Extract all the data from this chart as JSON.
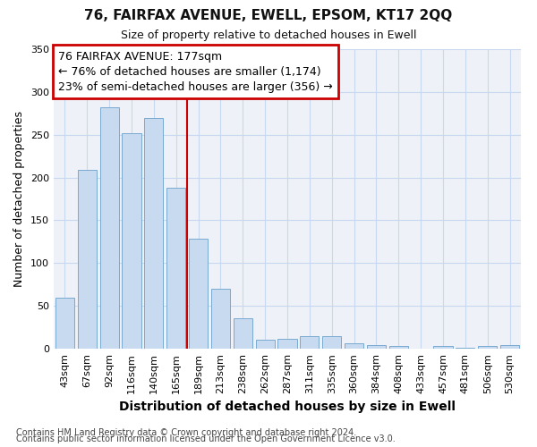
{
  "title": "76, FAIRFAX AVENUE, EWELL, EPSOM, KT17 2QQ",
  "subtitle": "Size of property relative to detached houses in Ewell",
  "xlabel": "Distribution of detached houses by size in Ewell",
  "ylabel": "Number of detached properties",
  "categories": [
    "43sqm",
    "67sqm",
    "92sqm",
    "116sqm",
    "140sqm",
    "165sqm",
    "189sqm",
    "213sqm",
    "238sqm",
    "262sqm",
    "287sqm",
    "311sqm",
    "335sqm",
    "360sqm",
    "384sqm",
    "408sqm",
    "433sqm",
    "457sqm",
    "481sqm",
    "506sqm",
    "530sqm"
  ],
  "values": [
    60,
    209,
    282,
    252,
    270,
    188,
    128,
    70,
    36,
    10,
    11,
    15,
    15,
    6,
    4,
    3,
    0,
    3,
    1,
    3,
    4
  ],
  "bar_color": "#c8daf0",
  "bar_edge_color": "#7aaad0",
  "annotation_text_line1": "76 FAIRFAX AVENUE: 177sqm",
  "annotation_text_line2": "← 76% of detached houses are smaller (1,174)",
  "annotation_text_line3": "23% of semi-detached houses are larger (356) →",
  "annotation_box_color": "#ffffff",
  "annotation_box_edgecolor": "#cc0000",
  "vline_color": "#cc0000",
  "vline_x": 5.5,
  "grid_color": "#c8d8f0",
  "background_color": "#ffffff",
  "plot_bg_color": "#eef2f8",
  "footnote1": "Contains HM Land Registry data © Crown copyright and database right 2024.",
  "footnote2": "Contains public sector information licensed under the Open Government Licence v3.0.",
  "ylim": [
    0,
    350
  ],
  "yticks": [
    0,
    50,
    100,
    150,
    200,
    250,
    300,
    350
  ],
  "title_fontsize": 11,
  "subtitle_fontsize": 9,
  "xlabel_fontsize": 10,
  "ylabel_fontsize": 9,
  "tick_fontsize": 8,
  "annotation_fontsize": 9,
  "footnote_fontsize": 7
}
